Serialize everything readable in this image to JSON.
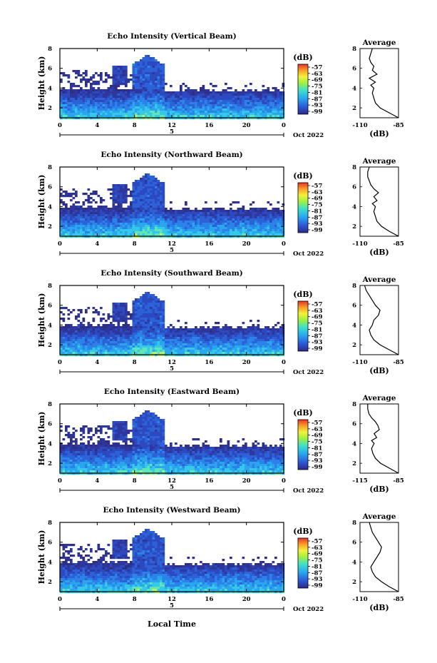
{
  "figure": {
    "xlabel_bottom": "Local Time",
    "date_label": "Oct 2022"
  },
  "chart_data": [
    {
      "type": "heatmap",
      "title": "Echo Intensity (Vertical Beam)",
      "ylabel": "Height (km)",
      "xlim": [
        0,
        24
      ],
      "ylim": [
        1,
        8
      ],
      "x_ticks": [
        "0",
        "4",
        "8",
        "12",
        "16",
        "20",
        "0"
      ],
      "y_ticks": [
        "2",
        "4",
        "6",
        "8"
      ],
      "day_label": "5",
      "colorbar": {
        "unit": "(dB)",
        "ticks": [
          "-57",
          "-63",
          "-69",
          "-75",
          "-81",
          "-87",
          "-93",
          "-99"
        ]
      },
      "profile": {
        "title": "Average",
        "xlabel": "(dB)",
        "x_ticks": [
          "-110",
          "-85"
        ],
        "y_ticks": [
          "2",
          "4",
          "6",
          "8"
        ],
        "height_km": [
          1.0,
          1.5,
          2.0,
          2.5,
          3.0,
          3.5,
          4.0,
          4.3,
          4.6,
          5.0,
          5.4,
          5.8,
          6.2,
          6.6,
          7.0,
          7.5,
          8.0
        ],
        "db": [
          -85,
          -91,
          -97,
          -100,
          -101,
          -102,
          -101,
          -103,
          -100,
          -104,
          -99,
          -102,
          -101,
          -103,
          -104,
          -103,
          -102
        ]
      }
    },
    {
      "type": "heatmap",
      "title": "Echo Intensity (Northward Beam)",
      "ylabel": "Height (km)",
      "xlim": [
        0,
        24
      ],
      "ylim": [
        1,
        8
      ],
      "x_ticks": [
        "0",
        "4",
        "8",
        "12",
        "16",
        "20",
        "0"
      ],
      "y_ticks": [
        "2",
        "4",
        "6",
        "8"
      ],
      "day_label": "5",
      "colorbar": {
        "unit": "(dB)",
        "ticks": [
          "-57",
          "-63",
          "-69",
          "-75",
          "-81",
          "-87",
          "-93",
          "-99"
        ]
      },
      "profile": {
        "title": "Average",
        "xlabel": "(dB)",
        "x_ticks": [
          "-110",
          "-85"
        ],
        "y_ticks": [
          "2",
          "4",
          "6",
          "8"
        ],
        "height_km": [
          1.0,
          1.5,
          2.0,
          2.5,
          3.0,
          3.5,
          4.0,
          4.3,
          4.6,
          5.0,
          5.4,
          5.8,
          6.2,
          6.6,
          7.0,
          7.5,
          8.0
        ],
        "db": [
          -85,
          -91,
          -96,
          -99,
          -100,
          -101,
          -100,
          -102,
          -99,
          -101,
          -98,
          -101,
          -103,
          -104,
          -105,
          -105,
          -104
        ]
      }
    },
    {
      "type": "heatmap",
      "title": "Echo Intensity (Southward Beam)",
      "ylabel": "Height (km)",
      "xlim": [
        0,
        24
      ],
      "ylim": [
        1,
        8
      ],
      "x_ticks": [
        "0",
        "4",
        "8",
        "12",
        "16",
        "20",
        "0"
      ],
      "y_ticks": [
        "2",
        "4",
        "6",
        "8"
      ],
      "day_label": "5",
      "colorbar": {
        "unit": "(dB)",
        "ticks": [
          "-57",
          "-63",
          "-69",
          "-75",
          "-81",
          "-87",
          "-93",
          "-99"
        ]
      },
      "profile": {
        "title": "Average",
        "xlabel": "(dB)",
        "x_ticks": [
          "-110",
          "-85"
        ],
        "y_ticks": [
          "2",
          "4",
          "6",
          "8"
        ],
        "height_km": [
          1.0,
          1.5,
          2.0,
          2.5,
          3.0,
          3.5,
          4.0,
          4.5,
          5.0,
          5.5,
          6.0,
          6.5,
          7.0,
          7.5,
          8.0
        ],
        "db": [
          -85,
          -91,
          -97,
          -101,
          -103,
          -104,
          -102,
          -101,
          -98,
          -97,
          -100,
          -102,
          -104,
          -106,
          -107
        ]
      }
    },
    {
      "type": "heatmap",
      "title": "Echo Intensity (Eastward Beam)",
      "ylabel": "Height (km)",
      "xlim": [
        0,
        24
      ],
      "ylim": [
        1,
        8
      ],
      "x_ticks": [
        "0",
        "4",
        "8",
        "12",
        "16",
        "20",
        "0"
      ],
      "y_ticks": [
        "2",
        "4",
        "6",
        "8"
      ],
      "day_label": "5",
      "colorbar": {
        "unit": "(dB)",
        "ticks": [
          "-57",
          "-63",
          "-69",
          "-75",
          "-81",
          "-87",
          "-93",
          "-99"
        ]
      },
      "profile": {
        "title": "Average",
        "xlabel": "(dB)",
        "x_ticks": [
          "-115",
          "-85"
        ],
        "y_ticks": [
          "2",
          "4",
          "6",
          "8"
        ],
        "height_km": [
          1.0,
          1.5,
          2.0,
          2.5,
          3.0,
          3.5,
          4.0,
          4.3,
          4.6,
          5.0,
          5.4,
          5.8,
          6.2,
          6.6,
          7.0,
          7.5,
          8.0
        ],
        "db": [
          -85,
          -92,
          -99,
          -103,
          -105,
          -106,
          -104,
          -106,
          -102,
          -104,
          -100,
          -101,
          -103,
          -106,
          -108,
          -109,
          -109
        ]
      }
    },
    {
      "type": "heatmap",
      "title": "Echo Intensity (Westward Beam)",
      "ylabel": "Height (km)",
      "xlim": [
        0,
        24
      ],
      "ylim": [
        1,
        8
      ],
      "x_ticks": [
        "0",
        "4",
        "8",
        "12",
        "16",
        "20",
        "0"
      ],
      "y_ticks": [
        "2",
        "4",
        "6",
        "8"
      ],
      "day_label": "5",
      "colorbar": {
        "unit": "(dB)",
        "ticks": [
          "-57",
          "-63",
          "-69",
          "-75",
          "-81",
          "-87",
          "-93",
          "-99"
        ]
      },
      "profile": {
        "title": "Average",
        "xlabel": "(dB)",
        "x_ticks": [
          "-110",
          "-85"
        ],
        "y_ticks": [
          "2",
          "4",
          "6",
          "8"
        ],
        "height_km": [
          1.0,
          1.5,
          2.0,
          2.5,
          3.0,
          3.5,
          4.0,
          4.5,
          5.0,
          5.5,
          6.0,
          6.5,
          7.0,
          7.5,
          8.0
        ],
        "db": [
          -85,
          -91,
          -96,
          -100,
          -102,
          -103,
          -101,
          -99,
          -97,
          -96,
          -98,
          -100,
          -102,
          -103,
          -104
        ]
      }
    }
  ]
}
